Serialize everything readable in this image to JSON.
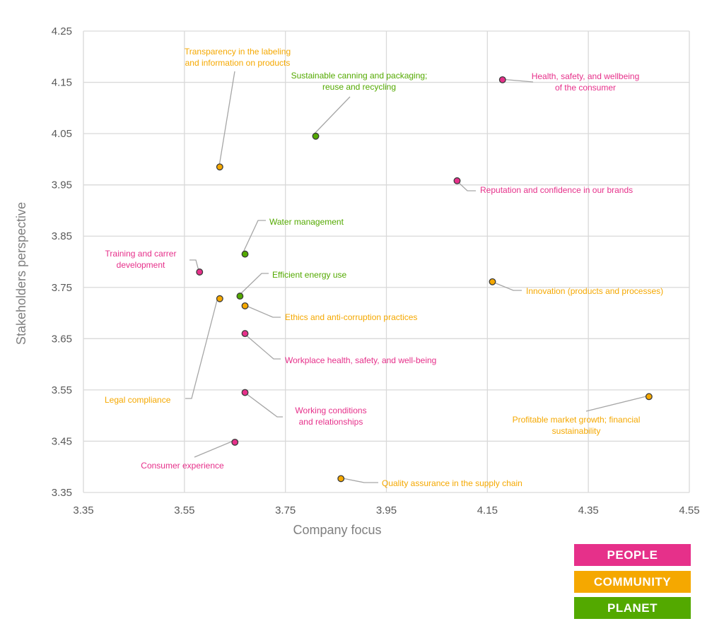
{
  "chart_data": {
    "type": "scatter",
    "xlabel": "Company focus",
    "ylabel": "Stakeholders perspective",
    "xlim": [
      3.35,
      4.55
    ],
    "ylim": [
      3.35,
      4.25
    ],
    "xticks": [
      "3.35",
      "3.55",
      "3.75",
      "3.95",
      "4.15",
      "4.35",
      "4.55"
    ],
    "yticks": [
      "3.35",
      "3.45",
      "3.55",
      "3.65",
      "3.75",
      "3.85",
      "3.95",
      "4.05",
      "4.15",
      "4.25"
    ],
    "grid": true,
    "colors": {
      "PEOPLE": "#e6308a",
      "COMMUNITY": "#f5a800",
      "PLANET": "#53a900"
    },
    "points": [
      {
        "label": "Transparency in the labeling\nand information on products",
        "group": "COMMUNITY",
        "x": 3.62,
        "y": 3.985
      },
      {
        "label": "Sustainable canning and packaging;\nreuse and recycling",
        "group": "PLANET",
        "x": 3.81,
        "y": 4.045
      },
      {
        "label": "Health, safety, and wellbeing\nof the consumer",
        "group": "PEOPLE",
        "x": 4.18,
        "y": 4.155
      },
      {
        "label": "Reputation and confidence in our brands",
        "group": "PEOPLE",
        "x": 4.09,
        "y": 3.958
      },
      {
        "label": "Water management",
        "group": "PLANET",
        "x": 3.67,
        "y": 3.815
      },
      {
        "label": "Training and carrer\ndevelopment",
        "group": "PEOPLE",
        "x": 3.58,
        "y": 3.78
      },
      {
        "label": "Efficient energy use",
        "group": "PLANET",
        "x": 3.66,
        "y": 3.733
      },
      {
        "label": "Innovation (products and processes)",
        "group": "COMMUNITY",
        "x": 4.16,
        "y": 3.761
      },
      {
        "label": "Ethics and anti-corruption practices",
        "group": "COMMUNITY",
        "x": 3.67,
        "y": 3.714
      },
      {
        "label": "Legal compliance",
        "group": "COMMUNITY",
        "x": 3.62,
        "y": 3.728
      },
      {
        "label": "Workplace health, safety, and well-being",
        "group": "PEOPLE",
        "x": 3.67,
        "y": 3.66
      },
      {
        "label": "Working conditions\nand relationships",
        "group": "PEOPLE",
        "x": 3.67,
        "y": 3.545
      },
      {
        "label": "Consumer experience",
        "group": "PEOPLE",
        "x": 3.65,
        "y": 3.448
      },
      {
        "label": "Quality assurance in the supply chain",
        "group": "COMMUNITY",
        "x": 3.86,
        "y": 3.377
      },
      {
        "label": "Profitable market growth; financial\nsustainability",
        "group": "COMMUNITY",
        "x": 4.47,
        "y": 3.537
      }
    ]
  },
  "legend": {
    "items": [
      {
        "label": "PEOPLE",
        "color": "#e6308a"
      },
      {
        "label": "COMMUNITY",
        "color": "#f5a800"
      },
      {
        "label": "PLANET",
        "color": "#53a900"
      }
    ]
  }
}
